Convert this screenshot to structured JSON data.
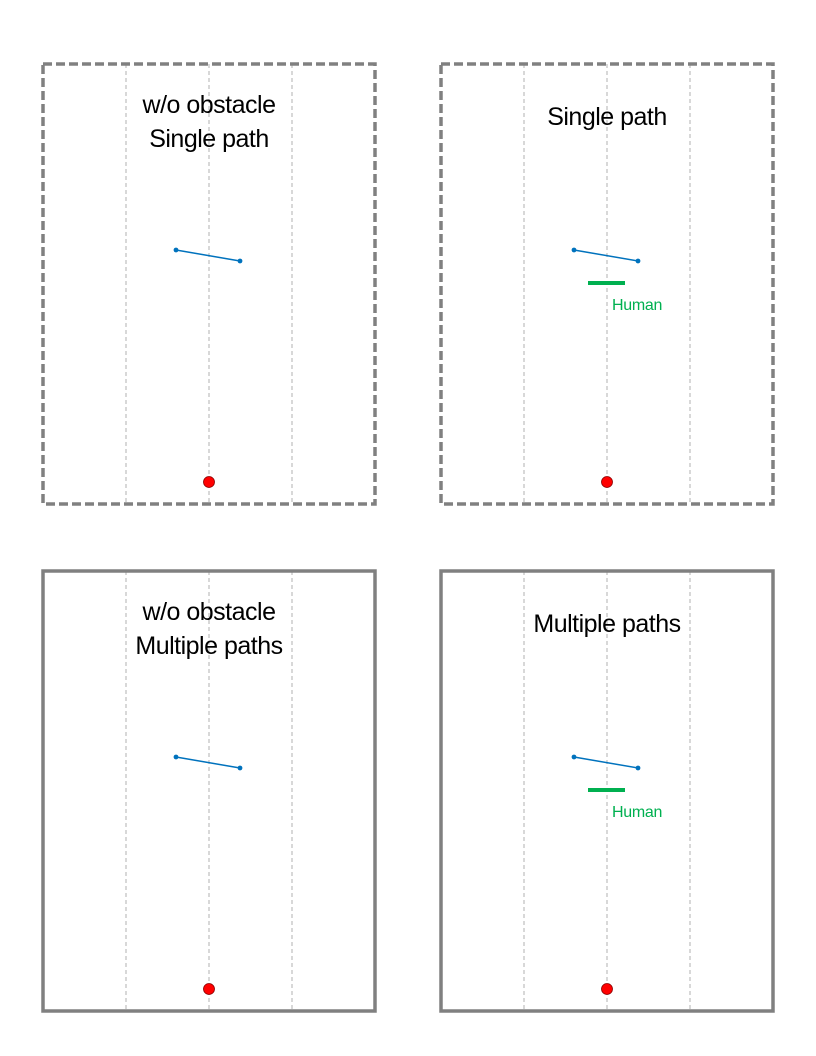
{
  "colors": {
    "border": "#808080",
    "guide": "#b0b0b0",
    "path": "#0072bd",
    "human": "#00b050",
    "goal": "#ff0000"
  },
  "panels": [
    {
      "id": "panel-wo-obstacle-single-path",
      "border_style": "dashed",
      "title_lines": [
        "w/o obstacle",
        "Single path"
      ],
      "has_human": false
    },
    {
      "id": "panel-single-path",
      "border_style": "dashed",
      "title_lines": [
        "Single path"
      ],
      "has_human": true
    },
    {
      "id": "panel-wo-obstacle-multiple-paths",
      "border_style": "solid",
      "title_lines": [
        "w/o obstacle",
        "Multiple paths"
      ],
      "has_human": false
    },
    {
      "id": "panel-multiple-paths",
      "border_style": "solid",
      "title_lines": [
        "Multiple paths"
      ],
      "has_human": true
    }
  ],
  "human_label": "Human"
}
